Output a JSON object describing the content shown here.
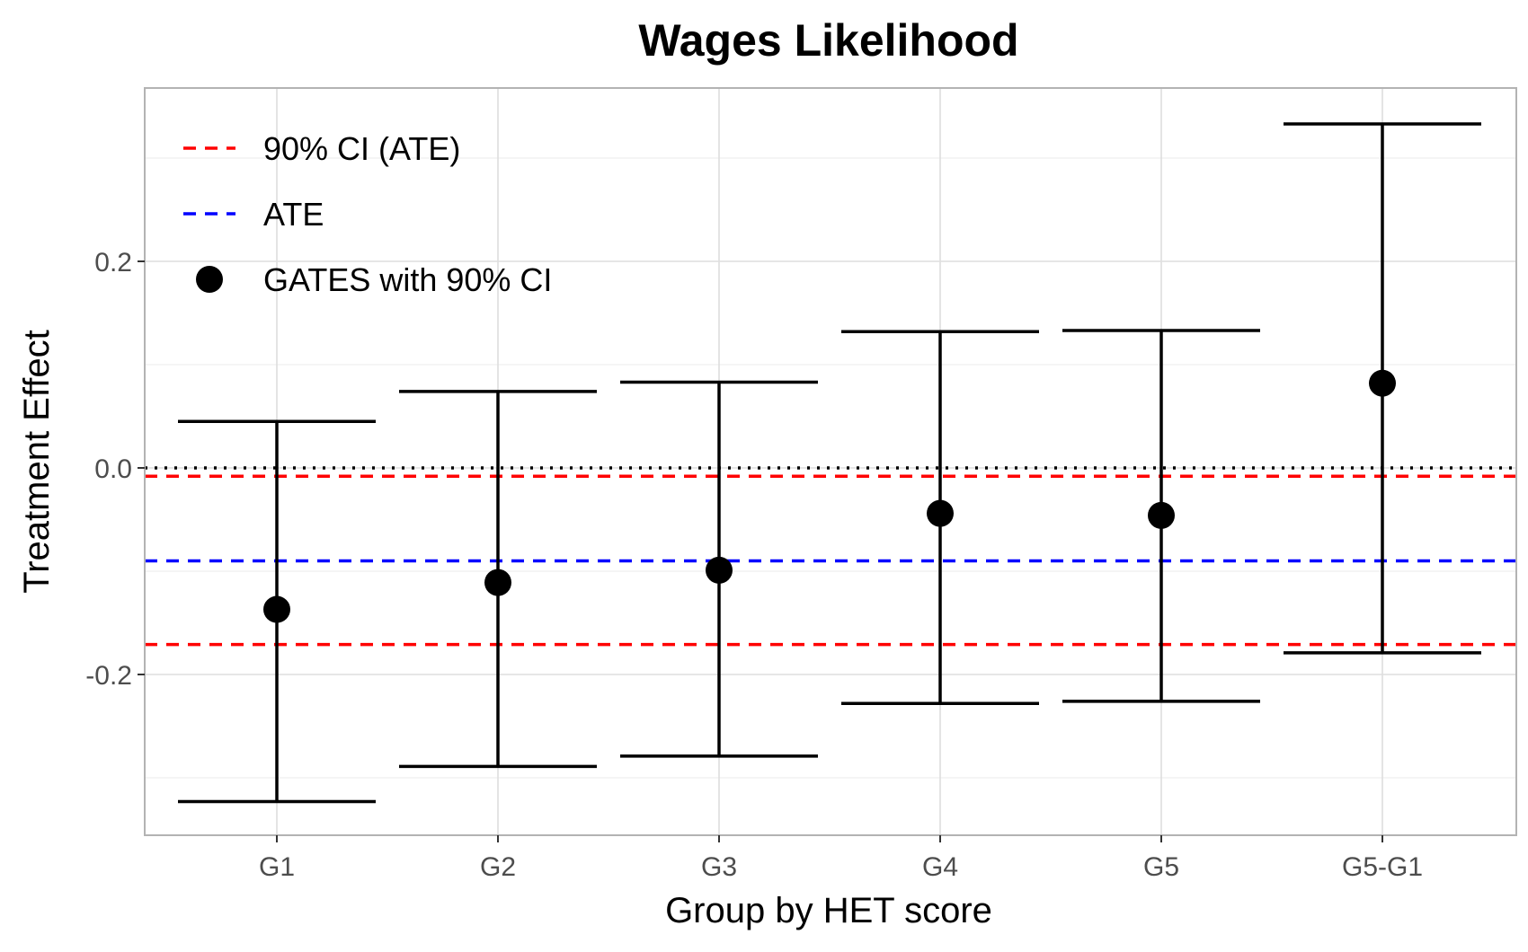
{
  "chart_data": {
    "type": "scatter",
    "title": "Wages Likelihood",
    "xlabel": "Group by HET score",
    "ylabel": "Treatment Effect",
    "categories": [
      "G1",
      "G2",
      "G3",
      "G4",
      "G5",
      "G5-G1"
    ],
    "ylim": [
      -0.35,
      0.365
    ],
    "yticks": [
      -0.2,
      0.0,
      0.2
    ],
    "ytick_labels": [
      "-0.2",
      "0.0",
      "0.2"
    ],
    "grid": true,
    "legend_position": "top-left",
    "series": [
      {
        "name": "GATES with 90% CI",
        "type": "point-errorbar",
        "color": "#000000",
        "values": [
          -0.137,
          -0.111,
          -0.099,
          -0.044,
          -0.046,
          0.082
        ],
        "ci_lower": [
          -0.323,
          -0.289,
          -0.279,
          -0.228,
          -0.226,
          -0.179
        ],
        "ci_upper": [
          0.045,
          0.074,
          0.083,
          0.132,
          0.133,
          0.333
        ]
      }
    ],
    "reference_lines": [
      {
        "name": "ATE",
        "value": -0.09,
        "color": "#0000ff",
        "style": "dashed"
      },
      {
        "name": "90% CI (ATE)",
        "value": -0.008,
        "color": "#ff0000",
        "style": "dashed"
      },
      {
        "name": "90% CI (ATE)",
        "value": -0.171,
        "color": "#ff0000",
        "style": "dashed"
      },
      {
        "name": "zero",
        "value": 0.0,
        "color": "#000000",
        "style": "dotted"
      }
    ],
    "legend": [
      {
        "label": "90% CI (ATE)",
        "color": "#ff0000",
        "symbol": "dashed-line"
      },
      {
        "label": "ATE",
        "color": "#0000ff",
        "symbol": "dashed-line"
      },
      {
        "label": "GATES with 90% CI",
        "color": "#000000",
        "symbol": "point"
      }
    ]
  }
}
